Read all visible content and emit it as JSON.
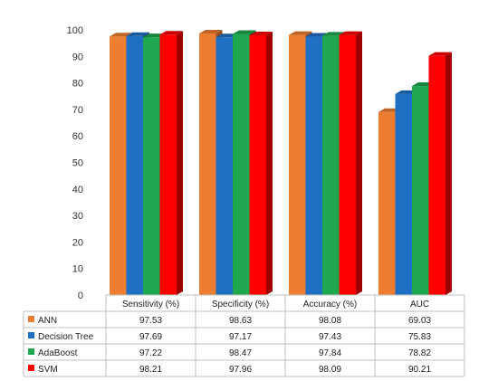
{
  "chart_data": {
    "type": "bar",
    "categories": [
      "Sensitivity (%)",
      "Specificity (%)",
      "Accuracy (%)",
      "AUC"
    ],
    "series": [
      {
        "name": "ANN",
        "values": [
          97.53,
          98.63,
          98.08,
          69.03
        ],
        "color": "#ED7D31"
      },
      {
        "name": "Decision Tree",
        "values": [
          97.69,
          97.17,
          97.43,
          75.83
        ],
        "color": "#1F6FC5"
      },
      {
        "name": "AdaBoost",
        "values": [
          97.22,
          98.47,
          97.84,
          78.82
        ],
        "color": "#1FA84F"
      },
      {
        "name": "SVM",
        "values": [
          98.21,
          97.96,
          98.09,
          90.21
        ],
        "color": "#FF0000"
      }
    ],
    "ylim": [
      0,
      100
    ],
    "yticks": [
      0,
      10,
      20,
      30,
      40,
      50,
      60,
      70,
      80,
      90,
      100
    ],
    "grid": false,
    "legend": "data-table-bottom"
  }
}
